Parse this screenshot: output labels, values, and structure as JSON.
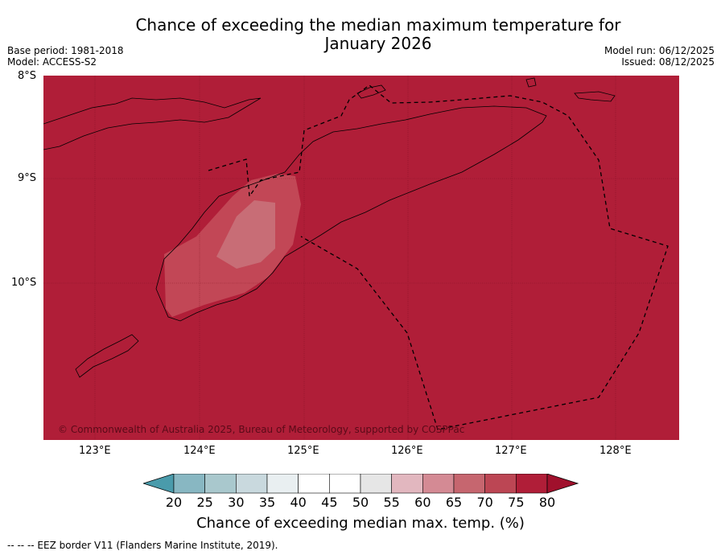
{
  "title": {
    "line1": "Chance of exceeding the median maximum temperature for",
    "line2": "January 2026"
  },
  "meta": {
    "base_period": "Base period: 1981-2018",
    "model": "Model: ACCESS-S2",
    "model_run": "Model run: 06/12/2025",
    "issued": "Issued: 08/12/2025"
  },
  "map": {
    "lat_labels": [
      "8°S",
      "9°S",
      "10°S"
    ],
    "lon_labels": [
      "123°E",
      "124°E",
      "125°E",
      "126°E",
      "127°E",
      "128°E"
    ],
    "credit": "© Commonwealth of Australia 2025, Bureau of Meteorology, supported by COSPPac",
    "background_color": "#b01e38"
  },
  "colorbar": {
    "ticks": [
      "20",
      "25",
      "30",
      "35",
      "40",
      "45",
      "50",
      "55",
      "60",
      "65",
      "70",
      "75",
      "80"
    ],
    "colors": [
      "#66a9b6",
      "#88b7c2",
      "#a9c8cd",
      "#c9d9de",
      "#e9eff1",
      "#ffffff",
      "#ffffff",
      "#e6e6e6",
      "#e2b7bf",
      "#d48a94",
      "#c6666f",
      "#bc4654",
      "#b01e38"
    ],
    "label": "Chance of exceeding median max. temp. (%)"
  },
  "footnote": "-- -- -- EEZ border V11 (Flanders Marine Institute, 2019)."
}
